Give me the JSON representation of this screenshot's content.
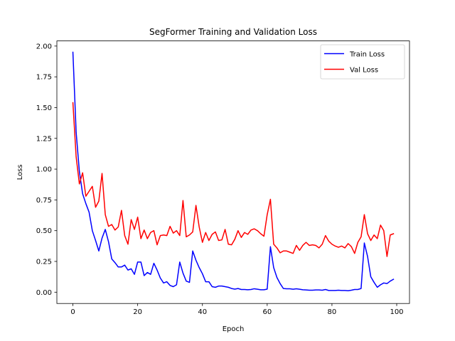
{
  "chart_data": {
    "type": "line",
    "title": "SegFormer Training and Validation Loss",
    "xlabel": "Epoch",
    "ylabel": "Loss",
    "xlim": [
      -4.95,
      103.95
    ],
    "ylim": [
      -0.0918,
      2.0418
    ],
    "xticks": [
      0,
      20,
      40,
      60,
      80,
      100
    ],
    "yticks": [
      0.0,
      0.25,
      0.5,
      0.75,
      1.0,
      1.25,
      1.5,
      1.75,
      2.0
    ],
    "xtick_labels": [
      "0",
      "20",
      "40",
      "60",
      "80",
      "100"
    ],
    "ytick_labels": [
      "0.00",
      "0.25",
      "0.50",
      "0.75",
      "1.00",
      "1.25",
      "1.50",
      "1.75",
      "2.00"
    ],
    "legend_position": "top-right",
    "grid": false,
    "series": [
      {
        "name": "Train Loss",
        "color": "#0000ff",
        "values": [
          1.95,
          1.3,
          0.98,
          0.8,
          0.72,
          0.65,
          0.5,
          0.42,
          0.335,
          0.44,
          0.51,
          0.41,
          0.27,
          0.24,
          0.205,
          0.205,
          0.22,
          0.18,
          0.19,
          0.145,
          0.245,
          0.245,
          0.135,
          0.16,
          0.145,
          0.235,
          0.18,
          0.115,
          0.075,
          0.085,
          0.055,
          0.045,
          0.06,
          0.245,
          0.155,
          0.09,
          0.08,
          0.335,
          0.26,
          0.2,
          0.15,
          0.085,
          0.085,
          0.045,
          0.04,
          0.05,
          0.05,
          0.045,
          0.04,
          0.03,
          0.025,
          0.03,
          0.022,
          0.022,
          0.02,
          0.022,
          0.028,
          0.024,
          0.02,
          0.02,
          0.025,
          0.37,
          0.2,
          0.12,
          0.07,
          0.03,
          0.028,
          0.028,
          0.024,
          0.028,
          0.024,
          0.02,
          0.018,
          0.016,
          0.016,
          0.018,
          0.018,
          0.016,
          0.022,
          0.014,
          0.014,
          0.014,
          0.016,
          0.014,
          0.014,
          0.012,
          0.016,
          0.022,
          0.022,
          0.03,
          0.4,
          0.29,
          0.125,
          0.08,
          0.04,
          0.06,
          0.075,
          0.07,
          0.09,
          0.105
        ]
      },
      {
        "name": "Val Loss",
        "color": "#ff0000",
        "values": [
          1.54,
          1.1,
          0.88,
          0.97,
          0.78,
          0.82,
          0.86,
          0.69,
          0.74,
          0.965,
          0.63,
          0.535,
          0.55,
          0.505,
          0.53,
          0.665,
          0.46,
          0.39,
          0.59,
          0.51,
          0.61,
          0.435,
          0.505,
          0.435,
          0.485,
          0.5,
          0.385,
          0.46,
          0.465,
          0.46,
          0.535,
          0.48,
          0.5,
          0.46,
          0.745,
          0.45,
          0.465,
          0.49,
          0.705,
          0.53,
          0.405,
          0.485,
          0.42,
          0.47,
          0.49,
          0.42,
          0.425,
          0.51,
          0.39,
          0.385,
          0.43,
          0.5,
          0.445,
          0.485,
          0.47,
          0.505,
          0.515,
          0.5,
          0.475,
          0.455,
          0.63,
          0.755,
          0.39,
          0.36,
          0.32,
          0.335,
          0.335,
          0.325,
          0.315,
          0.38,
          0.34,
          0.38,
          0.405,
          0.38,
          0.385,
          0.38,
          0.36,
          0.39,
          0.46,
          0.415,
          0.39,
          0.375,
          0.365,
          0.375,
          0.36,
          0.395,
          0.37,
          0.315,
          0.405,
          0.45,
          0.63,
          0.475,
          0.42,
          0.465,
          0.435,
          0.545,
          0.5,
          0.29,
          0.465,
          0.475
        ]
      }
    ]
  }
}
